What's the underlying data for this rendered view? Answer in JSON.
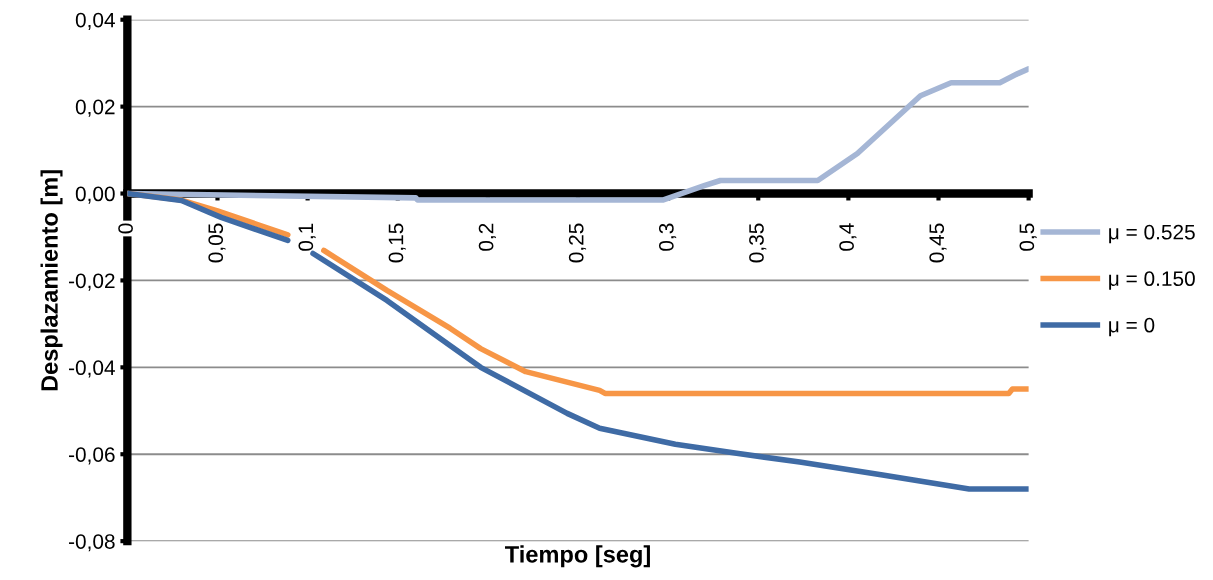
{
  "chart_data": {
    "type": "line",
    "xlabel": "Tiempo [seg]",
    "ylabel": "Desplazamiento [m]",
    "xlim": [
      0,
      0.5
    ],
    "ylim": [
      -0.08,
      0.04
    ],
    "xticks": [
      0,
      {
        "value": 0.05,
        "label": "0,05"
      },
      {
        "value": 0.1,
        "label": "0,1"
      },
      {
        "value": 0.15,
        "label": "0,15"
      },
      {
        "value": 0.2,
        "label": "0,2"
      },
      {
        "value": 0.25,
        "label": "0,25"
      },
      {
        "value": 0.3,
        "label": "0,3"
      },
      {
        "value": 0.35,
        "label": "0,35"
      },
      {
        "value": 0.4,
        "label": "0,4"
      },
      {
        "value": 0.45,
        "label": "0,45"
      },
      {
        "value": 0.5,
        "label": "0,5"
      }
    ],
    "yticks": [
      {
        "value": -0.08,
        "label": "-0,08"
      },
      {
        "value": -0.06,
        "label": "-0,06"
      },
      {
        "value": -0.04,
        "label": "-0,04"
      },
      {
        "value": -0.02,
        "label": "-0,02"
      },
      {
        "value": 0,
        "label": "0,00"
      },
      {
        "value": 0.02,
        "label": "0,02"
      },
      {
        "value": 0.04,
        "label": "0,04"
      }
    ],
    "grid": "y",
    "legend": "right",
    "marker": "none",
    "line_style": "solid",
    "series": [
      {
        "name": "μ = 0.525",
        "color": "#a5b6d5",
        "x": [
          0,
          0.16,
          0.161,
          0.297,
          0.32,
          0.329,
          0.383,
          0.405,
          0.425,
          0.44,
          0.457,
          0.484,
          0.494,
          0.5
        ],
        "values": [
          0,
          -0.001,
          -0.0015,
          -0.0015,
          0.0018,
          0.003,
          0.003,
          0.0092,
          0.0168,
          0.0225,
          0.0255,
          0.0255,
          0.0276,
          0.0287
        ]
      },
      {
        "name": "μ = 0.150",
        "color": "#f79646",
        "x": [
          0,
          0.03,
          0.05,
          0.089,
          0.095,
          0.109,
          0.144,
          0.179,
          0.196,
          0.221,
          0.262,
          0.265,
          0.489,
          0.491,
          0.5
        ],
        "values": [
          0,
          -0.0015,
          -0.004,
          -0.0095,
          null,
          -0.0131,
          -0.0223,
          -0.031,
          -0.0357,
          -0.041,
          -0.0453,
          -0.046,
          -0.046,
          -0.045,
          -0.045
        ]
      },
      {
        "name": "μ = 0",
        "color": "#3f6ba5",
        "x": [
          0,
          0.03,
          0.052,
          0.089,
          0.095,
          0.103,
          0.144,
          0.179,
          0.196,
          0.244,
          0.262,
          0.304,
          0.338,
          0.373,
          0.419,
          0.467,
          0.5
        ],
        "values": [
          0,
          -0.0016,
          -0.0055,
          -0.0108,
          null,
          -0.0138,
          -0.0246,
          -0.035,
          -0.04,
          -0.0506,
          -0.054,
          -0.0577,
          -0.0598,
          -0.0618,
          -0.0648,
          -0.068,
          -0.068
        ]
      }
    ]
  }
}
